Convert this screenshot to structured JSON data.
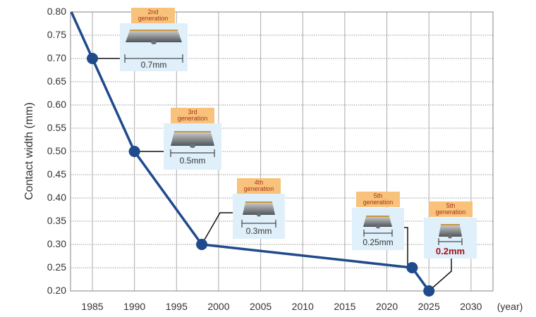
{
  "chart_data": {
    "type": "line",
    "title": "",
    "xlabel": "(year)",
    "ylabel": "Contact width (mm)",
    "xlim": [
      1982.5,
      2032.5
    ],
    "ylim": [
      0.2,
      0.8
    ],
    "x_ticks": [
      "1985",
      "1990",
      "1995",
      "2000",
      "2005",
      "2010",
      "2015",
      "2020",
      "2025",
      "2030"
    ],
    "y_ticks": [
      "0.80",
      "0.75",
      "0.70",
      "0.65",
      "0.60",
      "0.55",
      "0.50",
      "0.45",
      "0.40",
      "0.35",
      "0.30",
      "0.25",
      "0.20"
    ],
    "grid": true,
    "series": [
      {
        "name": "Contact width",
        "color": "#1f4a8c",
        "x": [
          1982.5,
          1985,
          1990,
          1998,
          2023,
          2025
        ],
        "y": [
          0.8,
          0.7,
          0.5,
          0.3,
          0.25,
          0.2
        ]
      }
    ],
    "annotations": [
      {
        "generation": "2nd generation",
        "width_label": "0.7mm",
        "x": 1985,
        "y": 0.7
      },
      {
        "generation": "3rd generation",
        "width_label": "0.5mm",
        "x": 1990,
        "y": 0.5
      },
      {
        "generation": "4th generation",
        "width_label": "0.3mm",
        "x": 1998,
        "y": 0.3
      },
      {
        "generation": "5th generation",
        "width_label": "0.25mm",
        "x": 2023,
        "y": 0.25
      },
      {
        "generation": "5th generation",
        "width_label": "0.2mm",
        "x": 2025,
        "y": 0.2,
        "highlight": true
      }
    ]
  },
  "labels": {
    "ylabel": "Contact width (mm)",
    "xunit": "(year)",
    "y_ticks": [
      "0.80",
      "0.75",
      "0.70",
      "0.65",
      "0.60",
      "0.55",
      "0.50",
      "0.45",
      "0.40",
      "0.35",
      "0.30",
      "0.25",
      "0.20"
    ],
    "x_ticks": [
      "1985",
      "1990",
      "1995",
      "2000",
      "2005",
      "2010",
      "2015",
      "2020",
      "2025",
      "2030"
    ],
    "gens": [
      {
        "line1": "2nd",
        "line2": "generation",
        "dim": "0.7mm"
      },
      {
        "line1": "3rd",
        "line2": "generation",
        "dim": "0.5mm"
      },
      {
        "line1": "4th",
        "line2": "generation",
        "dim": "0.3mm"
      },
      {
        "line1": "5th",
        "line2": "generation",
        "dim": "0.25mm"
      },
      {
        "line1": "5th",
        "line2": "generation",
        "dim": "0.2mm"
      }
    ]
  },
  "colors": {
    "line": "#1f4a8c",
    "tag_bg": "#f8c27a",
    "tag_text": "#a8321d",
    "panel_bg": "#dff0fb",
    "highlight": "#a0121b"
  }
}
